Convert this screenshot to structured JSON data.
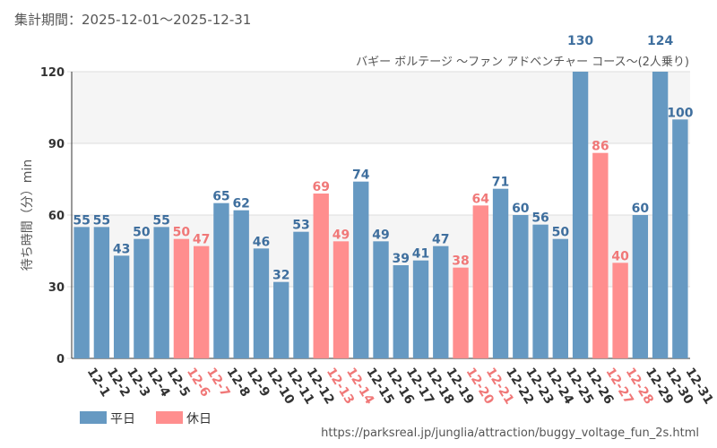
{
  "header": {
    "period": "集計期間：2025-12-01～2025-12-31"
  },
  "colors": {
    "weekday": "#6699c2",
    "holiday": "#ff8e8e",
    "weekday_text": "#3f6f9e",
    "holiday_text": "#f07878",
    "band_light": "#f5f5f5",
    "axis": "#333333"
  },
  "chart_data": {
    "type": "bar",
    "title": "バギー ボルテージ ～ファン アドベンチャー コース～(2人乗り)",
    "ylabel": "待ち時間（分）min",
    "xlabel": "",
    "ylim": [
      0,
      120
    ],
    "yticks": [
      0,
      30,
      60,
      90,
      120
    ],
    "categories": [
      "12-1",
      "12-2",
      "12-3",
      "12-4",
      "12-5",
      "12-6",
      "12-7",
      "12-8",
      "12-9",
      "12-10",
      "12-11",
      "12-12",
      "12-13",
      "12-14",
      "12-15",
      "12-16",
      "12-17",
      "12-18",
      "12-19",
      "12-20",
      "12-21",
      "12-22",
      "12-23",
      "12-24",
      "12-25",
      "12-26",
      "12-27",
      "12-28",
      "12-29",
      "12-30",
      "12-31"
    ],
    "values": [
      55,
      55,
      43,
      50,
      55,
      50,
      47,
      65,
      62,
      46,
      32,
      53,
      69,
      49,
      74,
      49,
      39,
      41,
      47,
      38,
      64,
      71,
      60,
      56,
      50,
      130,
      86,
      40,
      60,
      124,
      100
    ],
    "day_type": [
      "weekday",
      "weekday",
      "weekday",
      "weekday",
      "weekday",
      "holiday",
      "holiday",
      "weekday",
      "weekday",
      "weekday",
      "weekday",
      "weekday",
      "holiday",
      "holiday",
      "weekday",
      "weekday",
      "weekday",
      "weekday",
      "weekday",
      "holiday",
      "holiday",
      "weekday",
      "weekday",
      "weekday",
      "weekday",
      "weekday",
      "holiday",
      "holiday",
      "weekday",
      "weekday",
      "weekday"
    ],
    "legend": [
      {
        "key": "weekday",
        "label": "平日"
      },
      {
        "key": "holiday",
        "label": "休日"
      }
    ]
  },
  "footer": {
    "source": "https://parksreal.jp/junglia/attraction/buggy_voltage_fun_2s.html"
  }
}
